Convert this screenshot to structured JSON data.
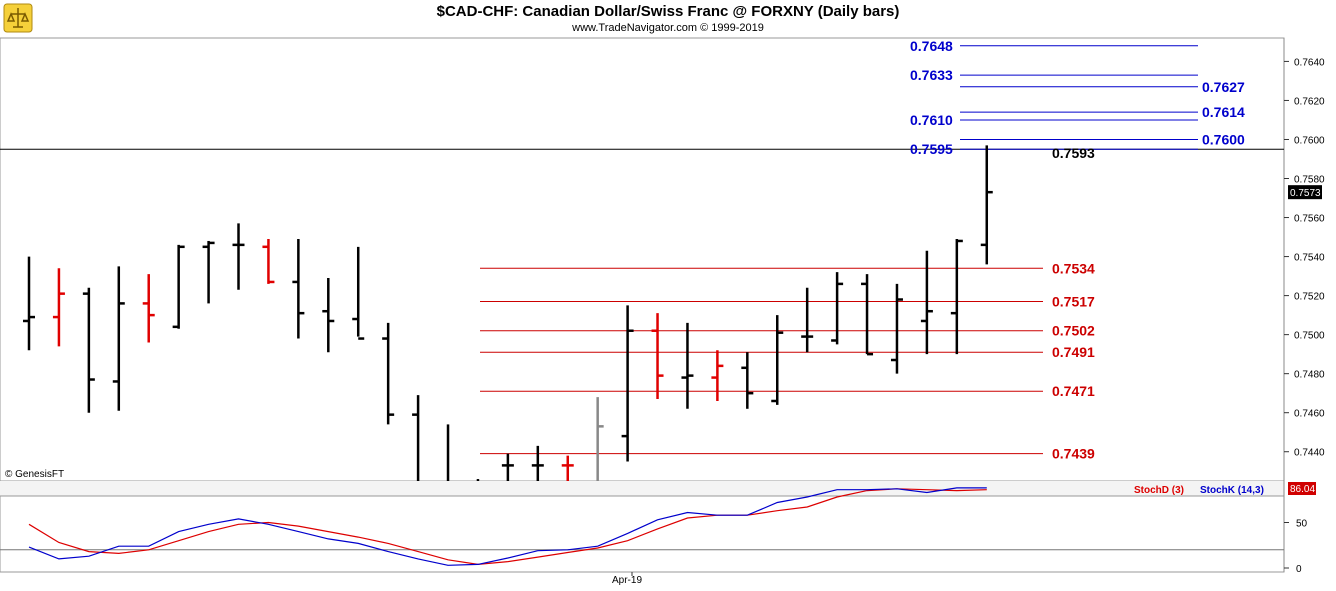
{
  "header": {
    "title": "$CAD-CHF:  Canadian Dollar/Swiss Franc @ FORXNY  (Daily bars)",
    "subtitle": "www.TradeNavigator.com © 1999-2019"
  },
  "footer": {
    "copyright": "© GenesisFT",
    "x_tick_label": "Apr-19"
  },
  "colors": {
    "up_bar": "#000000",
    "down_bar": "#e00000",
    "neutral_bar": "#888888",
    "resistance_level": "#0000cc",
    "support_level": "#cc0000",
    "stoch_d": "#dd0000",
    "stoch_k": "#0000cc"
  },
  "chart_data": [
    {
      "type": "ohlc",
      "title": "$CAD-CHF:  Canadian Dollar/Swiss Franc @ FORXNY  (Daily bars)",
      "y_ticks": [
        "0.7440",
        "0.7460",
        "0.7480",
        "0.7500",
        "0.7520",
        "0.7540",
        "0.7560",
        "0.7580",
        "0.7600",
        "0.7620",
        "0.7640"
      ],
      "ylim": [
        0.7425,
        0.7652
      ],
      "last_price_label": "0.7573",
      "horizontal_line": 0.7595,
      "bars": [
        {
          "o": 0.7507,
          "h": 0.754,
          "l": 0.7492,
          "c": 0.7509,
          "color": "up"
        },
        {
          "o": 0.7509,
          "h": 0.7534,
          "l": 0.7494,
          "c": 0.7521,
          "color": "down"
        },
        {
          "o": 0.7521,
          "h": 0.7524,
          "l": 0.746,
          "c": 0.7477,
          "color": "up"
        },
        {
          "o": 0.7476,
          "h": 0.7535,
          "l": 0.7461,
          "c": 0.7516,
          "color": "up"
        },
        {
          "o": 0.7516,
          "h": 0.7531,
          "l": 0.7496,
          "c": 0.751,
          "color": "down"
        },
        {
          "o": 0.7504,
          "h": 0.7546,
          "l": 0.7503,
          "c": 0.7545,
          "color": "up"
        },
        {
          "o": 0.7545,
          "h": 0.7548,
          "l": 0.7516,
          "c": 0.7547,
          "color": "up"
        },
        {
          "o": 0.7546,
          "h": 0.7557,
          "l": 0.7523,
          "c": 0.7546,
          "color": "up"
        },
        {
          "o": 0.7545,
          "h": 0.7549,
          "l": 0.7526,
          "c": 0.7527,
          "color": "down"
        },
        {
          "o": 0.7527,
          "h": 0.7549,
          "l": 0.7498,
          "c": 0.7511,
          "color": "up"
        },
        {
          "o": 0.7512,
          "h": 0.7529,
          "l": 0.7491,
          "c": 0.7507,
          "color": "up"
        },
        {
          "o": 0.7508,
          "h": 0.7545,
          "l": 0.7499,
          "c": 0.7498,
          "color": "up"
        },
        {
          "o": 0.7498,
          "h": 0.7506,
          "l": 0.7454,
          "c": 0.7459,
          "color": "up"
        },
        {
          "o": 0.7459,
          "h": 0.7469,
          "l": 0.7425,
          "c": 0.7424,
          "color": "up"
        },
        {
          "o": 0.7424,
          "h": 0.7454,
          "l": 0.7425,
          "c": 0.7424,
          "color": "up"
        },
        {
          "o": 0.7424,
          "h": 0.7426,
          "l": 0.7425,
          "c": 0.7424,
          "color": "up"
        },
        {
          "o": 0.7433,
          "h": 0.7439,
          "l": 0.7425,
          "c": 0.7433,
          "color": "up"
        },
        {
          "o": 0.7433,
          "h": 0.7443,
          "l": 0.7425,
          "c": 0.7433,
          "color": "up"
        },
        {
          "o": 0.7433,
          "h": 0.7438,
          "l": 0.7425,
          "c": 0.7433,
          "color": "down"
        },
        {
          "o": 0.7424,
          "h": 0.7468,
          "l": 0.7425,
          "c": 0.7453,
          "color": "neutral"
        },
        {
          "o": 0.7448,
          "h": 0.7515,
          "l": 0.7435,
          "c": 0.7502,
          "color": "up"
        },
        {
          "o": 0.7502,
          "h": 0.7511,
          "l": 0.7467,
          "c": 0.7479,
          "color": "down"
        },
        {
          "o": 0.7478,
          "h": 0.7506,
          "l": 0.7462,
          "c": 0.7479,
          "color": "up"
        },
        {
          "o": 0.7478,
          "h": 0.7492,
          "l": 0.7466,
          "c": 0.7484,
          "color": "down"
        },
        {
          "o": 0.7483,
          "h": 0.7491,
          "l": 0.7462,
          "c": 0.747,
          "color": "up"
        },
        {
          "o": 0.7466,
          "h": 0.751,
          "l": 0.7464,
          "c": 0.7501,
          "color": "up"
        },
        {
          "o": 0.7499,
          "h": 0.7524,
          "l": 0.7491,
          "c": 0.7499,
          "color": "up"
        },
        {
          "o": 0.7497,
          "h": 0.7532,
          "l": 0.7495,
          "c": 0.7526,
          "color": "up"
        },
        {
          "o": 0.7526,
          "h": 0.7531,
          "l": 0.749,
          "c": 0.749,
          "color": "up"
        },
        {
          "o": 0.7487,
          "h": 0.7526,
          "l": 0.748,
          "c": 0.7518,
          "color": "up"
        },
        {
          "o": 0.7507,
          "h": 0.7543,
          "l": 0.749,
          "c": 0.7512,
          "color": "up"
        },
        {
          "o": 0.7511,
          "h": 0.7549,
          "l": 0.749,
          "c": 0.7548,
          "color": "up"
        },
        {
          "o": 0.7546,
          "h": 0.7597,
          "l": 0.7536,
          "c": 0.7573,
          "color": "up"
        }
      ],
      "levels": [
        {
          "value": 0.7648,
          "label": "0.7648",
          "kind": "resistance",
          "label_side": "left"
        },
        {
          "value": 0.7633,
          "label": "0.7633",
          "kind": "resistance",
          "label_side": "left"
        },
        {
          "value": 0.7627,
          "label": "0.7627",
          "kind": "resistance",
          "label_side": "right"
        },
        {
          "value": 0.7614,
          "label": "0.7614",
          "kind": "resistance",
          "label_side": "right"
        },
        {
          "value": 0.761,
          "label": "0.7610",
          "kind": "resistance",
          "label_side": "left"
        },
        {
          "value": 0.76,
          "label": "0.7600",
          "kind": "resistance",
          "label_side": "right"
        },
        {
          "value": 0.7595,
          "label": "0.7595",
          "kind": "resistance",
          "label_side": "left"
        },
        {
          "value": 0.7593,
          "label": "0.7593",
          "kind": "marker",
          "label_side": "right"
        },
        {
          "value": 0.7534,
          "label": "0.7534",
          "kind": "support",
          "label_side": "right"
        },
        {
          "value": 0.7517,
          "label": "0.7517",
          "kind": "support",
          "label_side": "right"
        },
        {
          "value": 0.7502,
          "label": "0.7502",
          "kind": "support",
          "label_side": "right"
        },
        {
          "value": 0.7491,
          "label": "0.7491",
          "kind": "support",
          "label_side": "right"
        },
        {
          "value": 0.7471,
          "label": "0.7471",
          "kind": "support",
          "label_side": "right"
        },
        {
          "value": 0.7439,
          "label": "0.7439",
          "kind": "support",
          "label_side": "right"
        }
      ]
    },
    {
      "type": "line",
      "y_ticks": [
        "0",
        "50"
      ],
      "ylim": [
        0,
        100
      ],
      "last_value_label": "86.04",
      "legend": [
        {
          "name": "StochD (3)",
          "color": "#dd0000"
        },
        {
          "name": "StochK (14,3)",
          "color": "#0000cc"
        }
      ],
      "reference_lines": [
        20,
        80
      ],
      "series": [
        {
          "name": "StochD (3)",
          "values": [
            48,
            28,
            18,
            16,
            20,
            30,
            40,
            48,
            50,
            46,
            40,
            34,
            27,
            18,
            9,
            4,
            7,
            12,
            17,
            22,
            30,
            43,
            55,
            58,
            58,
            63,
            67,
            78,
            85,
            87,
            86,
            85,
            86
          ]
        },
        {
          "name": "StochK (14,3)",
          "values": [
            23,
            10,
            13,
            24,
            24,
            40,
            48,
            54,
            48,
            40,
            32,
            27,
            18,
            10,
            3,
            4,
            11,
            19,
            20,
            24,
            38,
            53,
            61,
            58,
            58,
            72,
            78,
            86,
            86,
            87,
            83,
            88,
            88
          ]
        }
      ]
    }
  ]
}
